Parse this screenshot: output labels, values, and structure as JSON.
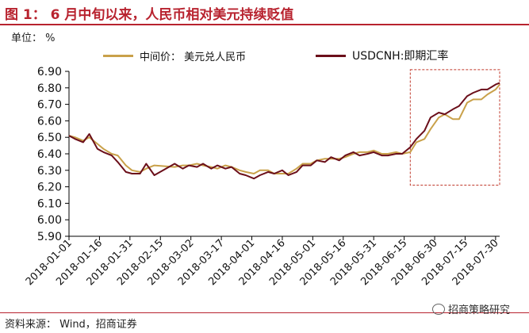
{
  "title": "图 1：  6 月中旬以来，人民币相对美元持续贬值",
  "unit_label": "单位：  %",
  "legend": {
    "cny": "中间价：  美元兑人民币",
    "cnh": "USDCNH:即期汇率"
  },
  "source": "资料来源：  Wind，招商证券",
  "watermark": "招商策略研究",
  "colors": {
    "cny": "#c9a14a",
    "cnh": "#6b0f1a",
    "highlight_box": "#c0392b",
    "title": "#b8232f"
  },
  "chart_data": {
    "type": "line",
    "ylim": [
      5.9,
      6.9
    ],
    "yticks": [
      "6.90",
      "6.80",
      "6.70",
      "6.60",
      "6.50",
      "6.40",
      "6.30",
      "6.20",
      "6.10",
      "6.00",
      "5.90"
    ],
    "xticks": [
      "2018-01-01",
      "2018-01-16",
      "2018-01-31",
      "2018-02-15",
      "2018-03-02",
      "2018-03-17",
      "2018-04-01",
      "2018-04-16",
      "2018-05-01",
      "2018-05-16",
      "2018-05-31",
      "2018-06-15",
      "2018-06-30",
      "2018-07-15",
      "2018-07-30"
    ],
    "x_range": [
      "2018-01-01",
      "2018-08-01"
    ],
    "highlight": {
      "x": [
        "2018-06-18",
        "2018-08-01"
      ],
      "y": [
        6.21,
        6.91
      ]
    },
    "series": [
      {
        "name": "中间价：  美元兑人民币",
        "color": "#c9a14a",
        "x": [
          "2018-01-01",
          "2018-01-04",
          "2018-01-08",
          "2018-01-11",
          "2018-01-15",
          "2018-01-18",
          "2018-01-22",
          "2018-01-25",
          "2018-01-29",
          "2018-02-01",
          "2018-02-05",
          "2018-02-08",
          "2018-02-12",
          "2018-02-22",
          "2018-02-26",
          "2018-03-01",
          "2018-03-05",
          "2018-03-08",
          "2018-03-12",
          "2018-03-15",
          "2018-03-19",
          "2018-03-22",
          "2018-03-26",
          "2018-03-29",
          "2018-04-02",
          "2018-04-05",
          "2018-04-09",
          "2018-04-12",
          "2018-04-16",
          "2018-04-19",
          "2018-04-23",
          "2018-04-26",
          "2018-04-30",
          "2018-05-03",
          "2018-05-07",
          "2018-05-10",
          "2018-05-14",
          "2018-05-17",
          "2018-05-21",
          "2018-05-24",
          "2018-05-28",
          "2018-05-31",
          "2018-06-04",
          "2018-06-07",
          "2018-06-11",
          "2018-06-14",
          "2018-06-18",
          "2018-06-21",
          "2018-06-25",
          "2018-06-28",
          "2018-07-02",
          "2018-07-05",
          "2018-07-09",
          "2018-07-12",
          "2018-07-16",
          "2018-07-19",
          "2018-07-23",
          "2018-07-26",
          "2018-07-30",
          "2018-08-01"
        ],
        "values": [
          6.51,
          6.5,
          6.48,
          6.5,
          6.46,
          6.43,
          6.4,
          6.39,
          6.33,
          6.3,
          6.29,
          6.31,
          6.33,
          6.32,
          6.33,
          6.33,
          6.34,
          6.33,
          6.32,
          6.31,
          6.33,
          6.32,
          6.3,
          6.29,
          6.28,
          6.3,
          6.3,
          6.28,
          6.28,
          6.28,
          6.31,
          6.34,
          6.34,
          6.36,
          6.37,
          6.37,
          6.37,
          6.38,
          6.4,
          6.41,
          6.41,
          6.42,
          6.4,
          6.4,
          6.41,
          6.4,
          6.41,
          6.47,
          6.49,
          6.55,
          6.62,
          6.64,
          6.61,
          6.61,
          6.71,
          6.73,
          6.73,
          6.76,
          6.79,
          6.82
        ]
      },
      {
        "name": "USDCNH:即期汇率",
        "color": "#6b0f1a",
        "x": [
          "2018-01-01",
          "2018-01-04",
          "2018-01-08",
          "2018-01-11",
          "2018-01-15",
          "2018-01-18",
          "2018-01-22",
          "2018-01-25",
          "2018-01-29",
          "2018-02-01",
          "2018-02-05",
          "2018-02-08",
          "2018-02-12",
          "2018-02-22",
          "2018-02-26",
          "2018-03-01",
          "2018-03-05",
          "2018-03-08",
          "2018-03-12",
          "2018-03-15",
          "2018-03-19",
          "2018-03-22",
          "2018-03-26",
          "2018-03-29",
          "2018-04-02",
          "2018-04-05",
          "2018-04-09",
          "2018-04-12",
          "2018-04-16",
          "2018-04-19",
          "2018-04-23",
          "2018-04-26",
          "2018-04-30",
          "2018-05-03",
          "2018-05-07",
          "2018-05-10",
          "2018-05-14",
          "2018-05-17",
          "2018-05-21",
          "2018-05-24",
          "2018-05-28",
          "2018-05-31",
          "2018-06-04",
          "2018-06-07",
          "2018-06-11",
          "2018-06-14",
          "2018-06-18",
          "2018-06-21",
          "2018-06-25",
          "2018-06-28",
          "2018-07-02",
          "2018-07-05",
          "2018-07-09",
          "2018-07-12",
          "2018-07-16",
          "2018-07-19",
          "2018-07-23",
          "2018-07-26",
          "2018-07-30",
          "2018-08-01"
        ],
        "values": [
          6.51,
          6.49,
          6.47,
          6.52,
          6.43,
          6.41,
          6.39,
          6.35,
          6.29,
          6.28,
          6.28,
          6.34,
          6.27,
          6.34,
          6.31,
          6.33,
          6.32,
          6.34,
          6.31,
          6.33,
          6.31,
          6.32,
          6.28,
          6.27,
          6.25,
          6.27,
          6.29,
          6.28,
          6.3,
          6.27,
          6.29,
          6.33,
          6.33,
          6.36,
          6.35,
          6.38,
          6.36,
          6.39,
          6.41,
          6.39,
          6.4,
          6.41,
          6.39,
          6.39,
          6.4,
          6.4,
          6.44,
          6.49,
          6.54,
          6.62,
          6.65,
          6.64,
          6.67,
          6.69,
          6.75,
          6.77,
          6.79,
          6.79,
          6.82,
          6.83
        ]
      }
    ]
  }
}
